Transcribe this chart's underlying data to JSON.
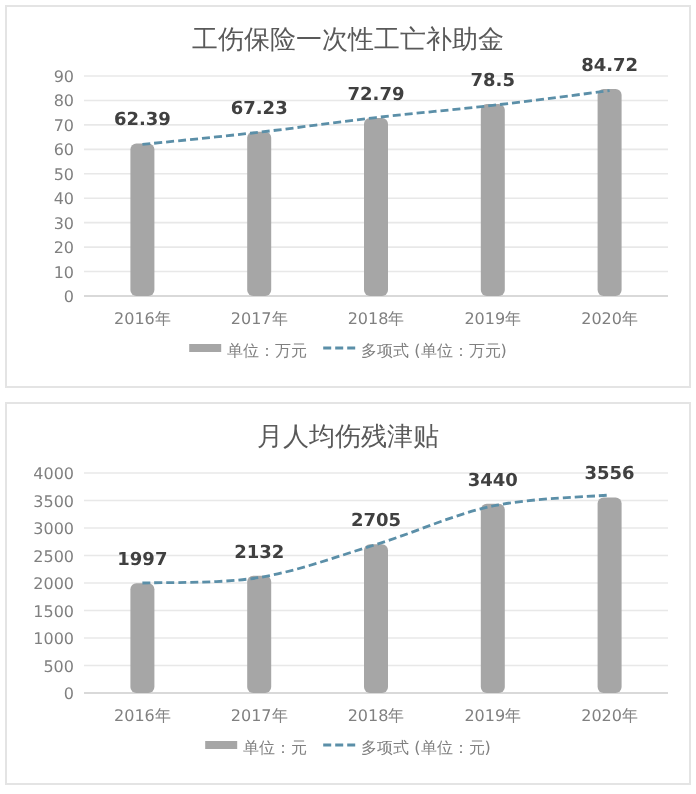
{
  "chart_data": [
    {
      "type": "bar",
      "title": "工伤保险一次性工亡补助金",
      "categories": [
        "2016年",
        "2017年",
        "2018年",
        "2019年",
        "2020年"
      ],
      "ylim": [
        0,
        90
      ],
      "yticks": [
        0,
        10,
        20,
        30,
        40,
        50,
        60,
        70,
        80,
        90
      ],
      "grid": "y",
      "legend": "bottom",
      "series": [
        {
          "name": "单位：万元",
          "color": "#a6a6a6",
          "values": [
            62.39,
            67.23,
            72.79,
            78.5,
            84.72
          ],
          "value_labels": [
            "62.39",
            "67.23",
            "72.79",
            "78.5",
            "84.72"
          ]
        },
        {
          "name": "多项式 (单位：万元)",
          "type": "line",
          "color": "#5b8fa8",
          "line_style": "dashed",
          "values": [
            62,
            67,
            73,
            78,
            84
          ]
        }
      ]
    },
    {
      "type": "bar",
      "title": "月人均伤残津贴",
      "categories": [
        "2016年",
        "2017年",
        "2018年",
        "2019年",
        "2020年"
      ],
      "ylim": [
        0,
        4000
      ],
      "yticks": [
        0,
        500,
        1000,
        1500,
        2000,
        2500,
        3000,
        3500,
        4000
      ],
      "grid": "y",
      "legend": "bottom",
      "series": [
        {
          "name": "单位：元",
          "color": "#a6a6a6",
          "values": [
            1997,
            2132,
            2705,
            3440,
            3556
          ],
          "value_labels": [
            "1997",
            "2132",
            "2705",
            "3440",
            "3556"
          ]
        },
        {
          "name": "多项式 (单位：元)",
          "type": "line",
          "color": "#5b8fa8",
          "line_style": "dashed",
          "values": [
            2000,
            2100,
            2700,
            3400,
            3600
          ]
        }
      ]
    }
  ]
}
